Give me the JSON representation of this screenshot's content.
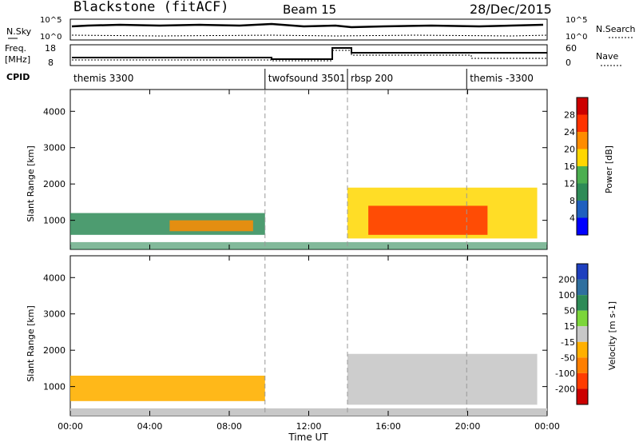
{
  "header": {
    "station": "Blackstone (fitACF)",
    "beam": "Beam 15",
    "date": "28/Dec/2015"
  },
  "top_panels": {
    "nsky_label": "N.Sky",
    "nsearch_label": "N.Search",
    "nsky_ticks": [
      "10^5",
      "10^0"
    ],
    "nsearch_ticks": [
      "10^5",
      "10^0"
    ],
    "freq_label": "Freq.",
    "freq_unit": "[MHz]",
    "freq_ticks": [
      "18",
      "8"
    ],
    "nave_label": "Nave",
    "nave_ticks": [
      "60",
      "0"
    ],
    "cpid_label": "CPID"
  },
  "cpid_segments": [
    {
      "label": "themis 3300",
      "start": 0.0,
      "end": 9.8
    },
    {
      "label": "twofsound 3501",
      "start": 9.8,
      "end": 13.95
    },
    {
      "label": "rbsp 200",
      "start": 13.95,
      "end": 19.95
    },
    {
      "label": "themis -3300",
      "start": 19.95,
      "end": 24.0
    }
  ],
  "axes": {
    "xlabel": "Time UT",
    "x_ticks": [
      "00:00",
      "04:00",
      "08:00",
      "12:00",
      "16:00",
      "20:00",
      "00:00"
    ],
    "ylabel": "Slant Range [km]",
    "y_ticks": [
      "1000",
      "2000",
      "3000",
      "4000"
    ]
  },
  "colorbars": {
    "power": {
      "label": "Power [dB]",
      "ticks": [
        "4",
        "8",
        "12",
        "16",
        "20",
        "24",
        "28"
      ],
      "colors": [
        "#0000ff",
        "#1f5fbf",
        "#2e8b57",
        "#4caf50",
        "#ffd700",
        "#ff8c00",
        "#ff3300",
        "#cc0000"
      ]
    },
    "velocity": {
      "label": "Velocity [m s-1]",
      "ticks": [
        "200",
        "100",
        "50",
        "15",
        "-15",
        "-50",
        "-100",
        "-200"
      ],
      "colors": [
        "#1e3fbf",
        "#2f6f9f",
        "#2e8b57",
        "#7cd63a",
        "#c8c8c8",
        "#ffb000",
        "#ff7f00",
        "#ff3c00",
        "#cc0000"
      ]
    }
  },
  "chart_data": {
    "type": "heatmap",
    "xlim": [
      0,
      24
    ],
    "ylim": [
      200,
      4600
    ],
    "dashed_markers_ut": [
      9.8,
      13.95,
      19.95
    ],
    "power_features": [
      {
        "name": "band-1",
        "t0": 0.0,
        "t1": 9.8,
        "r0": 600,
        "r1": 1200,
        "level": 8
      },
      {
        "name": "band-2",
        "t0": 5.0,
        "t1": 9.2,
        "r0": 700,
        "r1": 1000,
        "level": 22
      },
      {
        "name": "band-3",
        "t0": 13.95,
        "t1": 23.5,
        "r0": 500,
        "r1": 1900,
        "level": 16
      },
      {
        "name": "band-4",
        "t0": 15.0,
        "t1": 21.0,
        "r0": 600,
        "r1": 1400,
        "level": 26
      }
    ],
    "velocity_features": [
      {
        "name": "band-1",
        "t0": 0.0,
        "t1": 9.8,
        "r0": 600,
        "r1": 1300,
        "velocity": -30
      },
      {
        "name": "band-2",
        "t0": 13.95,
        "t1": 23.5,
        "r0": 500,
        "r1": 1900,
        "velocity": 0
      }
    ]
  }
}
